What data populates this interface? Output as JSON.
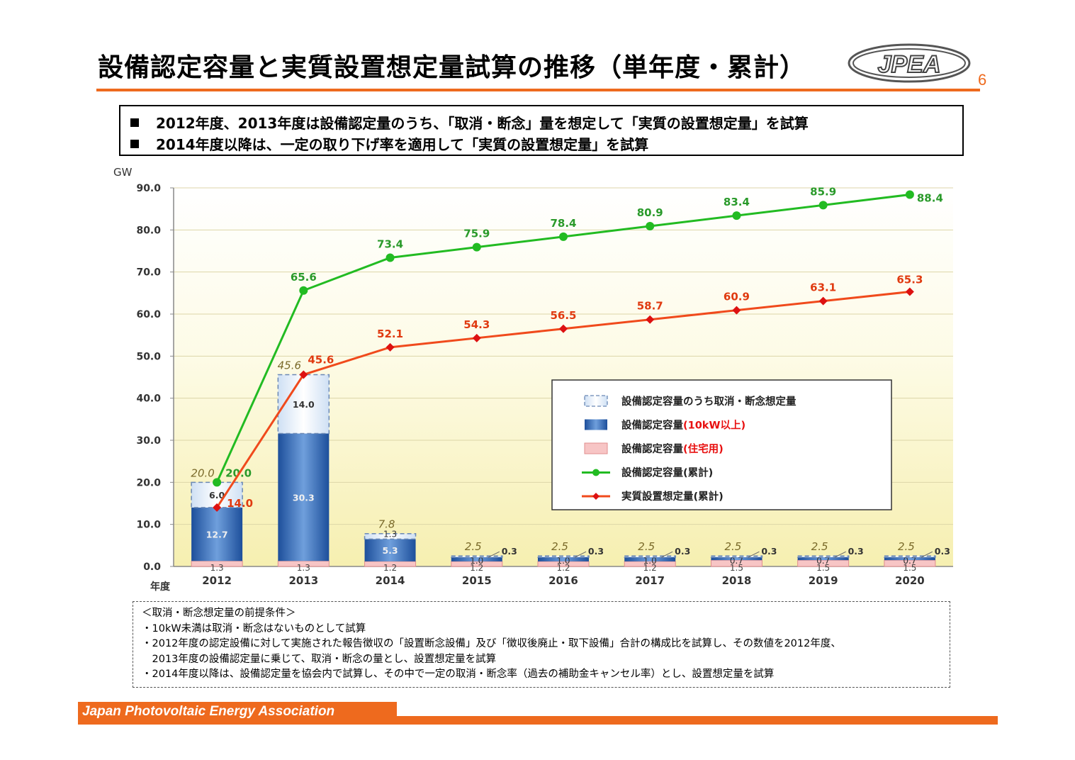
{
  "header": {
    "title": "設備認定容量と実質設置想定量試算の推移（単年度・累計）",
    "logo_text": "JPEA",
    "page_number": "6"
  },
  "notes": [
    "2012年度、2013年度は設備認定量のうち、「取消・断念」量を想定して「実質の設置想定量」を試算",
    "2014年度以降は、一定の取り下げ率を適用して「実質の設置想定量」を試算"
  ],
  "chart_data": {
    "type": "bar",
    "ylabel": "GW",
    "xlabel": "年度",
    "ylim": [
      0,
      90
    ],
    "yticks": [
      "0.0",
      "10.0",
      "20.0",
      "30.0",
      "40.0",
      "50.0",
      "60.0",
      "70.0",
      "80.0",
      "90.0"
    ],
    "categories": [
      "2012",
      "2013",
      "2014",
      "2015",
      "2016",
      "2017",
      "2018",
      "2019",
      "2020"
    ],
    "bar_series": [
      {
        "name": "設備認定容量(住宅用)",
        "color": "#f7c5c5",
        "values": [
          1.3,
          1.3,
          1.2,
          1.2,
          1.2,
          1.2,
          1.5,
          1.5,
          1.5
        ],
        "labels": [
          "1.3",
          "1.3",
          "1.2",
          "1.2",
          "1.2",
          "1.2",
          "1.5",
          "1.5",
          "1.5"
        ]
      },
      {
        "name": "設備認定容量(10kW以上)",
        "color": "#2e63ad",
        "values": [
          12.7,
          30.3,
          5.3,
          1.0,
          1.0,
          1.0,
          0.7,
          0.7,
          0.7
        ],
        "labels": [
          "12.7",
          "30.3",
          "5.3",
          "1.0",
          "1.0",
          "1.0",
          "0.7",
          "0.7",
          "0.7"
        ]
      },
      {
        "name": "設備認定容量のうち取消・断念想定量",
        "color": "#ffffff",
        "values": [
          6.0,
          14.0,
          1.3,
          0.3,
          0.3,
          0.3,
          0.3,
          0.3,
          0.3
        ],
        "labels": [
          "6.0",
          "14.0",
          "1.3",
          "0.3",
          "0.3",
          "0.3",
          "0.3",
          "0.3",
          "0.3"
        ]
      }
    ],
    "bar_totals": [
      "20.0",
      "45.6",
      "7.8",
      "2.5",
      "2.5",
      "2.5",
      "2.5",
      "2.5",
      "2.5"
    ],
    "line_series": [
      {
        "name": "設備認定容量(累計)",
        "color": "#22bb22",
        "values": [
          20.0,
          65.6,
          73.4,
          75.9,
          78.4,
          80.9,
          83.4,
          85.9,
          88.4
        ],
        "labels": [
          "20.0",
          "65.6",
          "73.4",
          "75.9",
          "78.4",
          "80.9",
          "83.4",
          "85.9",
          "88.4"
        ]
      },
      {
        "name": "実質設置想定量(累計)",
        "color": "#f04a1c",
        "values": [
          14.0,
          45.6,
          52.1,
          54.3,
          56.5,
          58.7,
          60.9,
          63.1,
          65.3
        ],
        "labels": [
          "14.0",
          "45.6",
          "52.1",
          "54.3",
          "56.5",
          "58.7",
          "60.9",
          "63.1",
          "65.3"
        ]
      }
    ],
    "legend": {
      "placement": "center-right",
      "items": [
        {
          "label": "設備認定容量のうち取消・断念想定量",
          "suffix": "",
          "kind": "dashed-box"
        },
        {
          "label": "設備認定容量",
          "suffix": "(10kW以上)",
          "kind": "blue-box"
        },
        {
          "label": "設備認定容量",
          "suffix": "(住宅用)",
          "kind": "pink-box"
        },
        {
          "label": "設備認定容量(累計)",
          "suffix": "",
          "kind": "green-line"
        },
        {
          "label": "実質設置想定量(累計)",
          "suffix": "",
          "kind": "red-line"
        }
      ]
    }
  },
  "conditions": {
    "heading": "＜取消・断念想定量の前提条件＞",
    "lines": [
      "・10kW未満は取消・断念はないものとして試算",
      "・2012年度の認定設備に対して実施された報告徴収の「設置断念設備」及び「徴収後廃止・取下設備」合計の構成比を試算し、その数値を2012年度、",
      "　2013年度の設備認定量に乗じて、取消・断念の量とし、設置想定量を試算",
      "・2014年度以降は、設備認定量を協会内で試算し、その中で一定の取消・断念率（過去の補助金キャンセル率）とし、設置想定量を試算"
    ]
  },
  "footer": {
    "organization": "Japan Photovoltaic Energy Association"
  },
  "colors": {
    "accent": "#ee6a1e",
    "bar_blue": "#2e63ad",
    "bar_pink": "#f7c5c5",
    "line_green": "#22bb22",
    "line_red": "#f04a1c"
  }
}
